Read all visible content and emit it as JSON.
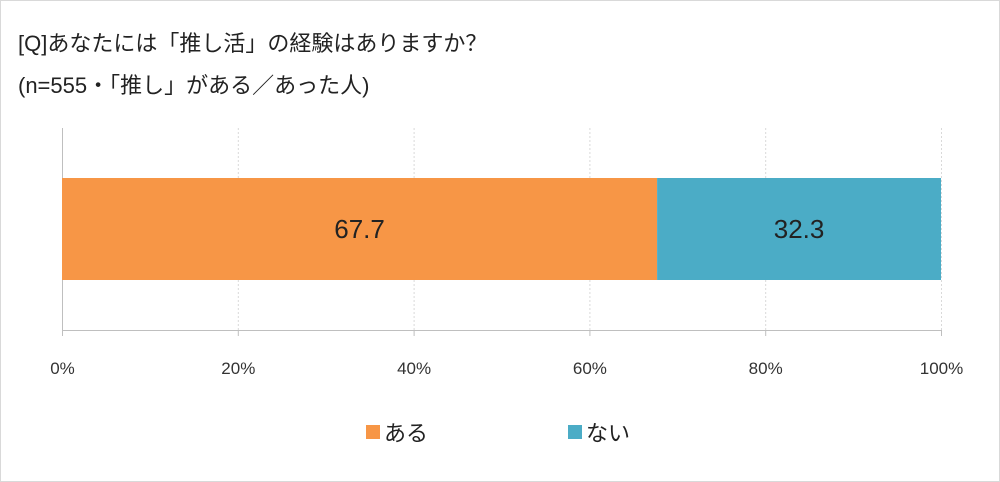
{
  "title_line1": "[Q]あなたには「推し活」の経験はありますか？",
  "title_line2": "(n=555・「推し」がある／あった人)",
  "chart_data": {
    "type": "bar",
    "orientation": "horizontal",
    "stacked": true,
    "categories": [
      ""
    ],
    "series": [
      {
        "name": "ある",
        "values": [
          67.7
        ],
        "color": "#F79646"
      },
      {
        "name": "ない",
        "values": [
          32.3
        ],
        "color": "#4BACC6"
      }
    ],
    "xlim": [
      0,
      100
    ],
    "xticks": [
      "0%",
      "20%",
      "40%",
      "60%",
      "80%",
      "100%"
    ],
    "grid": true,
    "legend": "bottom"
  }
}
